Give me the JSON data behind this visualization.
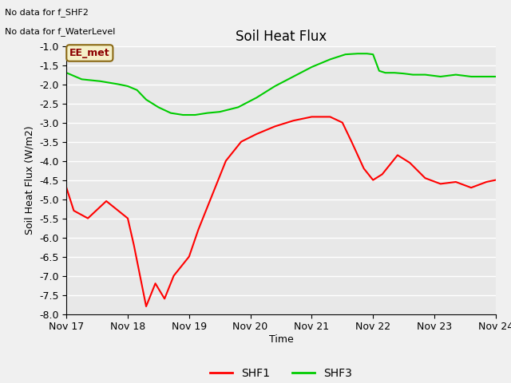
{
  "title": "Soil Heat Flux",
  "ylabel": "Soil Heat Flux (W/m2)",
  "xlabel": "Time",
  "ylim": [
    -8.0,
    -1.0
  ],
  "background_color": "#e8e8e8",
  "annotations": [
    "No data for f_SHF2",
    "No data for f_WaterLevel"
  ],
  "legend_label": "EE_met",
  "shf1_color": "#ff0000",
  "shf3_color": "#00cc00",
  "tick_labels": [
    "Nov 17",
    "Nov 18",
    "Nov 19",
    "Nov 20",
    "Nov 21",
    "Nov 22",
    "Nov 23",
    "Nov 24"
  ],
  "tick_positions": [
    0,
    1,
    2,
    3,
    4,
    5,
    6,
    7
  ],
  "grid_color": "#ffffff",
  "yticks": [
    -8.0,
    -7.5,
    -7.0,
    -6.5,
    -6.0,
    -5.5,
    -5.0,
    -4.5,
    -4.0,
    -3.5,
    -3.0,
    -2.5,
    -2.0,
    -1.5,
    -1.0
  ],
  "shf1_x": [
    0.0,
    0.12,
    0.35,
    0.65,
    1.0,
    1.1,
    1.3,
    1.45,
    1.6,
    1.75,
    2.0,
    2.15,
    2.35,
    2.6,
    2.85,
    3.1,
    3.4,
    3.7,
    4.0,
    4.3,
    4.5,
    4.65,
    4.85,
    5.0,
    5.15,
    5.4,
    5.6,
    5.85,
    6.1,
    6.35,
    6.6,
    6.85,
    7.0
  ],
  "shf1_y": [
    -4.7,
    -5.3,
    -5.5,
    -5.05,
    -5.5,
    -6.2,
    -7.8,
    -7.2,
    -7.6,
    -7.0,
    -6.5,
    -5.8,
    -5.0,
    -4.0,
    -3.5,
    -3.3,
    -3.1,
    -2.95,
    -2.85,
    -2.85,
    -3.0,
    -3.5,
    -4.2,
    -4.5,
    -4.35,
    -3.85,
    -4.05,
    -4.45,
    -4.6,
    -4.55,
    -4.7,
    -4.55,
    -4.5
  ],
  "shf3_x": [
    0.0,
    0.25,
    0.55,
    0.85,
    1.0,
    1.15,
    1.3,
    1.5,
    1.7,
    1.9,
    2.1,
    2.3,
    2.5,
    2.8,
    3.1,
    3.4,
    3.7,
    4.0,
    4.3,
    4.55,
    4.75,
    4.9,
    5.0,
    5.1,
    5.2,
    5.35,
    5.5,
    5.65,
    5.85,
    6.1,
    6.35,
    6.6,
    6.85,
    7.0
  ],
  "shf3_y": [
    -1.7,
    -1.87,
    -1.92,
    -2.0,
    -2.05,
    -2.15,
    -2.4,
    -2.6,
    -2.75,
    -2.8,
    -2.8,
    -2.75,
    -2.72,
    -2.6,
    -2.35,
    -2.05,
    -1.8,
    -1.55,
    -1.35,
    -1.22,
    -1.2,
    -1.2,
    -1.22,
    -1.65,
    -1.7,
    -1.7,
    -1.72,
    -1.75,
    -1.75,
    -1.8,
    -1.75,
    -1.8,
    -1.8,
    -1.8
  ]
}
